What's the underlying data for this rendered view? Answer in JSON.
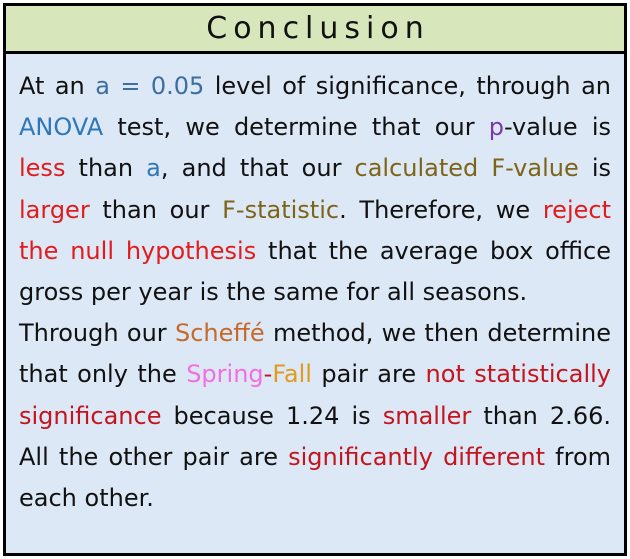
{
  "title": "Conclusion",
  "p1": {
    "t1": "At an ",
    "alpha_expr": "a = 0.05",
    "t2": " level of significance, through an ",
    "anova": "ANOVA",
    "t3": " test, we determine that our ",
    "p": "p",
    "t4": "-value is ",
    "less": "less",
    "t5": " than ",
    "a": "a",
    "t6": ", and that our ",
    "calc_f": "calculated F-value",
    "t7": " is ",
    "larger": "larger",
    "t8": " than our ",
    "f_stat": "F-statistic",
    "t9": ". Therefore, we ",
    "reject": "reject the null hypothesis",
    "t10": " that the average box office gross per year is the same for all seasons."
  },
  "p2": {
    "t1": "Through our ",
    "scheffe": "Scheffé",
    "t2": " method, we then determine that only the ",
    "spring": "Spring",
    "dash": "-",
    "fall": "Fall",
    "t3": " pair are ",
    "not_sig": "not statistically significance",
    "t4": " because 1.24 is ",
    "smaller": "smaller",
    "t5": " than 2.66. All the other pair are ",
    "sig_diff": "significantly different",
    "t6": " from each other."
  },
  "colors": {
    "title_bg": "#d7e7bb",
    "body_bg": "#dde8f6",
    "highlight_red": "#e01c1c",
    "highlight_dark_red": "#c4141c",
    "highlight_blue": "#2f78b8",
    "highlight_olive": "#7e6418",
    "highlight_orange": "#c56a2a",
    "highlight_pink": "#f36ee0",
    "highlight_gold": "#e09a1c",
    "highlight_purple": "#7a3aa8"
  }
}
